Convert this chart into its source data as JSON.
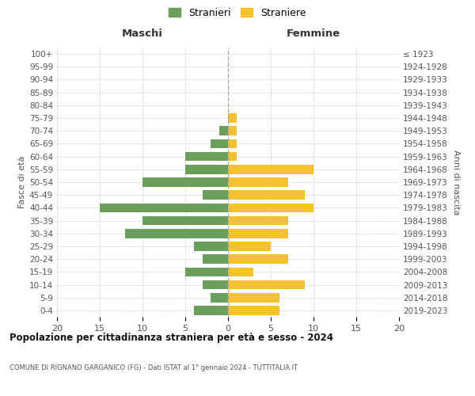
{
  "age_groups": [
    "0-4",
    "5-9",
    "10-14",
    "15-19",
    "20-24",
    "25-29",
    "30-34",
    "35-39",
    "40-44",
    "45-49",
    "50-54",
    "55-59",
    "60-64",
    "65-69",
    "70-74",
    "75-79",
    "80-84",
    "85-89",
    "90-94",
    "95-99",
    "100+"
  ],
  "birth_years": [
    "2019-2023",
    "2014-2018",
    "2009-2013",
    "2004-2008",
    "1999-2003",
    "1994-1998",
    "1989-1993",
    "1984-1988",
    "1979-1983",
    "1974-1978",
    "1969-1973",
    "1964-1968",
    "1959-1963",
    "1954-1958",
    "1949-1953",
    "1944-1948",
    "1939-1943",
    "1934-1938",
    "1929-1933",
    "1924-1928",
    "≤ 1923"
  ],
  "males": [
    4,
    2,
    3,
    5,
    3,
    4,
    12,
    10,
    15,
    3,
    10,
    5,
    5,
    2,
    1,
    0,
    0,
    0,
    0,
    0,
    0
  ],
  "females": [
    6,
    6,
    9,
    3,
    7,
    5,
    7,
    7,
    10,
    9,
    7,
    10,
    1,
    1,
    1,
    1,
    0,
    0,
    0,
    0,
    0
  ],
  "male_color": "#6a9e5b",
  "female_color": "#f5c131",
  "background_color": "#ffffff",
  "grid_color": "#cccccc",
  "title": "Popolazione per cittadinanza straniera per età e sesso - 2024",
  "subtitle": "COMUNE DI RIGNANO GARGANICO (FG) - Dati ISTAT al 1° gennaio 2024 - TUTTITALIA.IT",
  "xlabel_left": "Maschi",
  "xlabel_right": "Femmine",
  "ylabel_left": "Fasce di età",
  "ylabel_right": "Anni di nascita",
  "legend_male": "Stranieri",
  "legend_female": "Straniere",
  "xlim": 20,
  "bar_height": 0.72
}
